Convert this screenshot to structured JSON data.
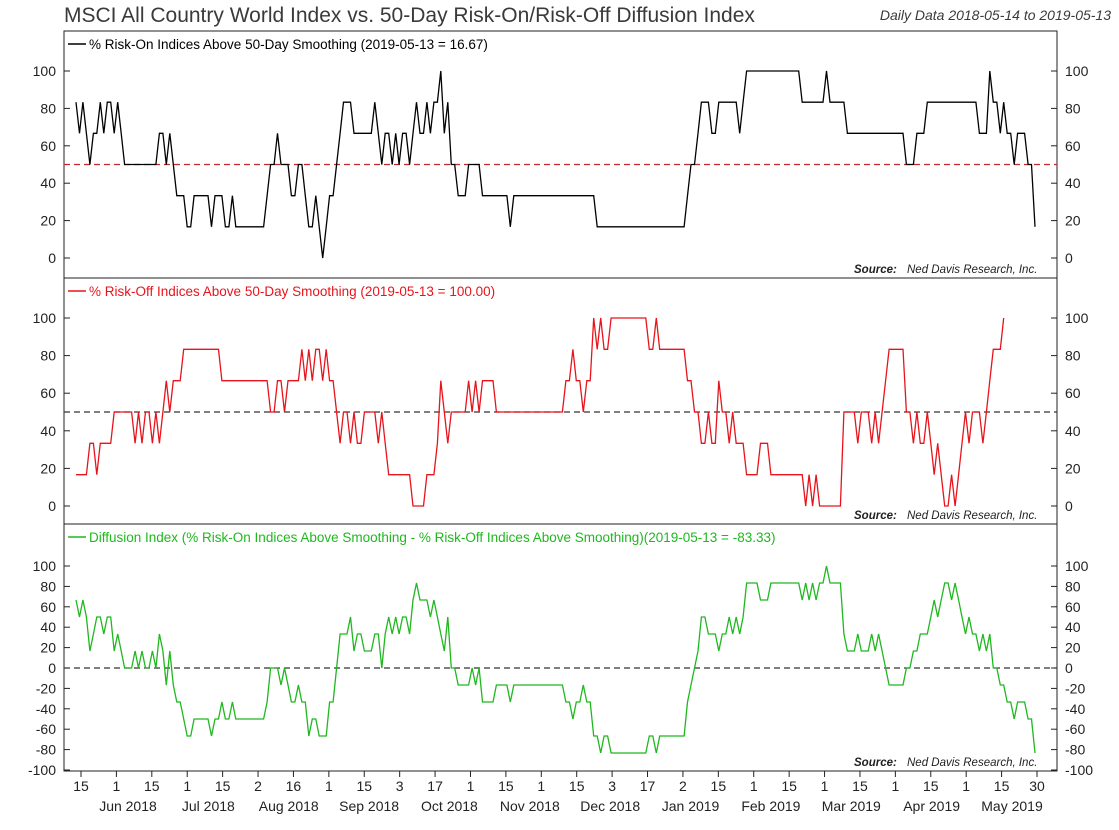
{
  "title": "MSCI All Country World Index vs. 50-Day Risk-On/Risk-Off Diffusion Index",
  "date_range": "Daily Data 2018-05-14 to 2019-05-13",
  "source_label": "Source:",
  "source_name": "Ned Davis Research, Inc.",
  "colors": {
    "risk_on": "#000000",
    "risk_off": "#e8141c",
    "diffusion": "#1fb81f",
    "ref_on": "#c0282d",
    "ref_other": "#333333"
  },
  "x_axis": {
    "day_labels": [
      "15",
      "1",
      "15",
      "1",
      "15",
      "2",
      "16",
      "1",
      "15",
      "3",
      "17",
      "1",
      "15",
      "1",
      "15",
      "3",
      "17",
      "2",
      "15",
      "1",
      "15",
      "1",
      "15",
      "1",
      "15",
      "1",
      "15",
      "30"
    ],
    "month_labels": [
      "Jun 2018",
      "Jul 2018",
      "Aug 2018",
      "Sep 2018",
      "Oct 2018",
      "Nov 2018",
      "Dec 2018",
      "Jan 2019",
      "Feb 2019",
      "Mar 2019",
      "Apr 2019",
      "May 2019"
    ]
  },
  "chart_data": [
    {
      "type": "line",
      "legend": "% Risk-On Indices Above 50-Day Smoothing (2019-05-13 = 16.67)",
      "series_name": "risk_on",
      "yticks": [
        "0",
        "20",
        "40",
        "60",
        "80",
        "100"
      ],
      "ylim": [
        -10,
        115
      ],
      "reference_line": 50,
      "t": [
        0,
        1,
        2,
        3,
        4,
        5,
        6,
        7,
        8,
        9,
        10,
        12,
        14,
        16,
        18,
        19,
        20,
        21,
        22,
        23,
        25,
        26,
        27,
        28,
        29,
        30,
        31,
        32,
        33,
        34,
        35,
        36,
        38,
        40,
        41,
        42,
        43,
        44,
        45,
        46,
        47,
        48,
        49,
        50,
        51,
        52,
        53,
        54,
        55,
        57,
        58,
        60,
        62,
        63,
        64,
        65,
        66,
        67,
        68,
        69,
        70,
        72,
        74,
        75,
        76,
        78,
        80,
        81,
        82,
        83,
        84,
        85,
        86,
        87,
        88,
        89,
        90,
        91,
        92,
        94,
        96,
        98,
        100,
        101,
        102,
        103,
        104,
        105,
        106,
        107,
        108,
        110,
        112,
        114,
        116,
        117,
        118,
        119,
        120,
        121,
        122,
        124,
        126,
        127,
        128,
        129,
        130,
        131,
        132,
        133,
        134,
        135,
        136,
        137,
        138,
        139,
        140,
        142,
        144,
        146,
        148,
        150,
        152,
        154,
        155,
        156,
        157,
        158,
        159,
        160,
        162,
        164,
        166,
        168,
        170,
        171,
        172,
        173,
        174,
        175,
        176,
        177,
        178,
        179,
        180,
        181,
        182,
        184,
        186,
        188,
        190,
        192,
        194,
        196,
        197,
        198,
        199,
        200,
        201,
        202,
        203,
        204,
        205,
        206,
        208,
        210,
        212,
        214,
        216,
        218,
        220,
        222,
        224,
        226,
        228,
        230,
        232,
        234,
        236,
        238,
        240,
        242,
        244,
        245,
        246,
        247,
        248,
        249,
        250,
        251,
        252,
        253,
        254,
        255,
        256,
        257,
        258,
        260,
        262,
        264,
        266,
        268,
        270,
        272,
        274,
        276,
        278,
        280,
        282,
        284,
        286,
        288,
        290,
        292,
        294,
        296,
        298,
        300,
        302,
        304,
        306,
        308,
        310,
        312,
        314,
        316,
        318,
        320,
        322,
        324,
        326,
        328,
        330,
        332,
        334,
        336,
        338,
        340,
        342,
        344,
        346,
        348,
        350,
        351,
        352,
        353,
        354,
        355,
        356,
        357,
        358,
        359,
        360,
        362,
        364,
        366,
        368,
        370,
        372,
        374,
        376,
        378,
        380,
        382,
        384,
        386,
        388,
        390,
        392,
        394,
        396,
        398,
        400,
        402,
        404,
        405,
        406,
        407,
        408,
        409,
        410,
        411,
        412,
        413,
        414,
        415,
        416,
        417,
        418,
        419,
        420,
        421,
        422,
        423,
        424,
        426,
        428,
        430,
        432,
        434,
        436,
        438,
        440,
        442,
        444,
        446,
        448,
        450,
        452,
        454,
        456,
        458,
        460,
        462,
        464,
        466,
        468,
        470,
        472,
        474,
        476,
        478,
        480,
        482,
        484,
        486,
        488,
        490,
        492,
        494,
        496,
        498,
        500,
        502,
        504,
        506,
        508,
        510,
        512,
        514,
        516,
        518,
        520,
        521,
        522,
        523,
        524,
        525,
        526,
        527,
        528,
        529,
        530,
        531,
        532,
        533,
        534,
        535,
        536,
        537,
        538,
        539,
        540,
        541,
        542,
        543,
        544,
        545,
        546,
        547,
        548,
        549,
        550,
        551,
        552,
        553,
        554,
        555,
        556,
        557,
        558,
        559,
        560,
        561,
        562,
        563,
        564,
        565,
        566,
        567,
        568,
        569,
        570,
        571,
        572,
        573,
        574,
        575,
        576,
        577,
        578,
        579,
        580,
        581,
        582,
        583,
        584,
        585,
        586,
        587,
        588,
        589,
        590,
        591,
        592,
        593,
        594,
        595,
        596,
        597,
        598,
        599,
        600,
        601,
        602,
        603,
        604,
        605,
        606,
        607,
        608,
        609,
        610,
        611,
        612,
        613,
        614,
        615,
        616,
        617,
        618,
        619,
        620,
        621,
        622,
        623,
        624,
        625,
        626,
        627,
        628,
        629,
        630,
        631,
        632,
        633,
        634,
        635,
        636,
        637,
        638,
        639,
        640,
        641,
        642,
        643,
        644,
        645,
        646,
        647,
        648,
        649,
        650,
        651,
        652,
        653,
        654,
        655,
        656,
        657,
        658,
        659,
        660,
        661,
        662,
        663,
        664,
        665,
        666,
        667,
        668,
        669,
        670,
        671,
        672,
        673,
        674,
        675,
        676,
        677,
        678,
        679,
        680,
        681,
        682,
        683,
        684,
        685,
        686,
        687,
        688,
        689,
        690,
        691,
        692,
        693,
        694,
        695,
        696,
        697,
        698,
        699,
        700,
        701,
        702,
        703,
        704,
        705,
        706,
        707,
        708,
        709,
        710,
        711,
        712,
        713,
        714,
        715,
        716,
        717,
        718,
        719,
        720,
        721,
        722,
        723,
        724,
        725,
        726,
        727,
        728,
        729,
        730,
        731,
        732,
        733,
        734,
        735,
        736,
        737,
        738,
        739,
        740,
        741,
        742,
        743,
        744,
        745,
        746,
        747,
        748,
        749,
        750,
        751,
        752,
        753,
        754,
        755,
        756,
        757,
        758,
        759,
        760,
        761,
        762,
        763,
        764,
        765,
        766,
        767,
        768,
        769,
        770,
        771,
        772,
        773,
        774,
        775,
        776,
        777,
        778,
        779,
        780,
        781,
        782,
        783,
        784,
        785,
        786,
        787,
        788,
        789,
        790,
        791,
        792,
        793,
        794,
        795,
        796,
        797,
        798,
        799,
        800,
        801,
        802,
        803,
        804,
        805,
        806,
        807,
        808,
        809,
        810,
        811,
        812,
        813,
        814,
        815,
        816,
        817,
        818,
        819,
        820,
        821,
        822,
        823,
        824,
        825,
        826,
        827,
        828,
        829,
        830,
        831,
        832,
        833,
        834,
        835,
        836,
        837,
        838,
        839,
        840,
        841,
        842,
        843,
        844,
        845,
        846,
        847,
        848,
        849,
        850,
        851,
        852,
        853,
        854,
        855,
        856,
        857,
        858,
        859,
        860,
        861,
        862,
        863,
        864,
        865,
        866,
        867,
        868,
        869,
        870,
        871,
        872,
        873,
        874,
        875,
        876,
        877,
        878,
        879,
        880,
        881,
        882,
        883,
        884,
        885,
        886,
        887,
        888,
        889,
        890,
        891,
        892,
        893,
        894,
        895,
        896,
        897,
        898,
        899,
        900,
        901,
        902,
        903,
        904,
        905,
        906,
        907,
        908,
        909,
        910,
        911,
        912,
        913,
        914,
        915,
        916,
        917,
        918,
        919,
        920,
        921,
        922,
        923,
        924,
        925,
        926,
        927,
        928,
        929,
        930,
        931,
        932,
        933,
        934,
        935,
        936,
        937,
        938,
        939,
        940,
        941,
        942,
        943,
        944,
        945,
        946,
        947,
        948,
        949,
        950,
        951,
        952,
        953,
        954,
        955,
        956,
        957,
        958,
        959,
        960,
        961,
        962,
        963,
        964,
        965,
        966,
        967,
        968,
        969,
        970,
        971,
        972,
        973,
        974,
        975,
        976,
        977,
        978,
        979,
        980,
        981,
        982,
        983,
        984,
        985,
        986,
        987,
        988,
        989,
        990,
        991,
        992,
        993,
        994,
        995,
        996,
        997,
        998,
        999,
        1000
      ],
      "values": []
    }
  ]
}
